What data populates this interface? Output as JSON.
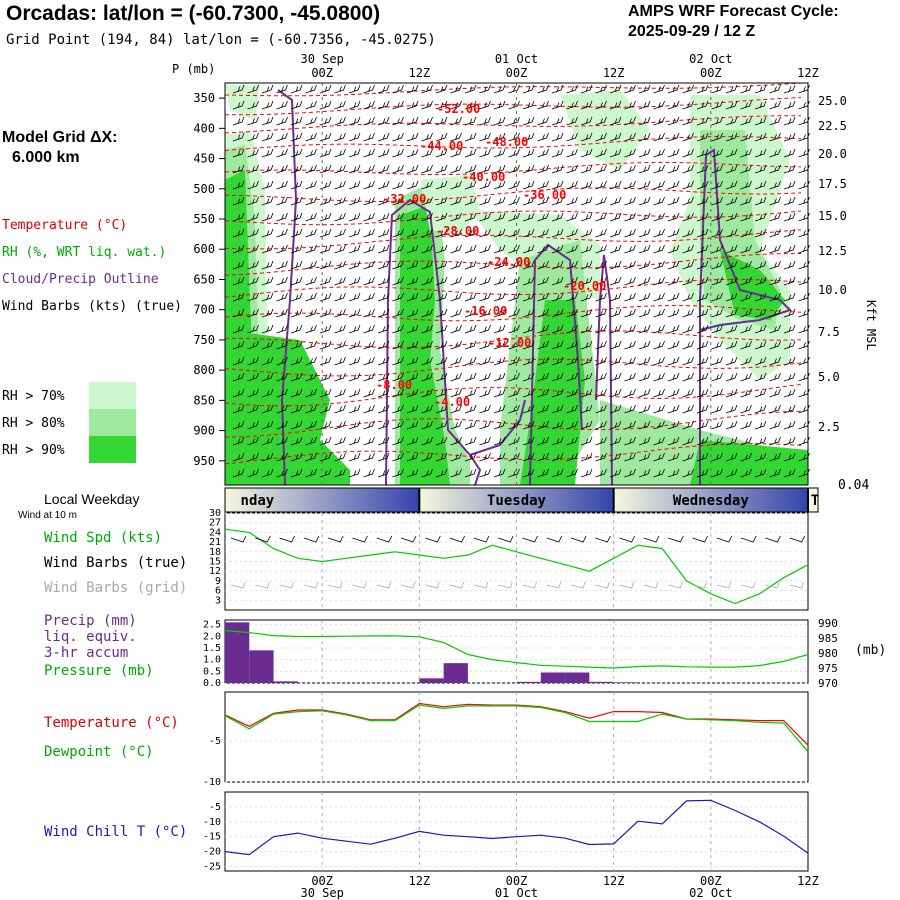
{
  "header": {
    "title": "Orcadas:  lat/lon = (-60.7300, -45.0800)",
    "grid_point": "Grid Point (194, 84) lat/lon = (-60.7356, -45.0275)",
    "cycle_line1": "AMPS WRF Forecast Cycle:",
    "cycle_line2": "2025-09-29 / 12  Z",
    "p_unit": "P (mb)",
    "model_grid_label": "Model Grid ΔX:",
    "model_grid_value": "6.000 km",
    "kft_label": "Kft MSL",
    "mb_label": "(mb)",
    "bottom_corner": "0.04"
  },
  "colors": {
    "rh70": "#cdf7cd",
    "rh80": "#9fe89f",
    "rh90": "#33d633",
    "temperature": "#ff0000",
    "dewpoint": "#00cc00",
    "cloud_outline": "#6a2c91",
    "precip": "#6a2c91",
    "wind_chill": "#1a1ab3",
    "wind_speed": "#00cc00"
  },
  "legend": {
    "temperature": "Temperature (°C)",
    "rh": "RH (%, WRT liq. wat.)",
    "cloud": "Cloud/Precip Outline",
    "wind_barbs": "Wind Barbs (kts) (true)",
    "rh70": "RH > 70%",
    "rh80": "RH > 80%",
    "rh90": "RH > 90%"
  },
  "panels": {
    "weekday_title": "Local Weekday",
    "wind_at": "Wind at 10 m",
    "wind_spd": "Wind Spd (kts)",
    "barbs_true": "Wind Barbs (true)",
    "barbs_grid": "Wind Barbs (grid)",
    "precip1": "Precip (mm)",
    "precip2": "liq. equiv.",
    "precip3": "3-hr accum",
    "pressure": "Pressure (mb)",
    "temperature": "Temperature (°C)",
    "dewpoint": "Dewpoint (°C)",
    "wind_chill": "Wind Chill T (°C)"
  },
  "chart_data": [
    {
      "type": "heatmap",
      "name": "vertical profile",
      "x_top_date_labels": [
        "30 Sep",
        "01 Oct",
        "02 Oct"
      ],
      "x_tick_labels": [
        "00Z",
        "12Z",
        "00Z",
        "12Z",
        "00Z",
        "12Z"
      ],
      "y_pressure_ticks": [
        350,
        400,
        450,
        500,
        550,
        600,
        650,
        700,
        750,
        800,
        850,
        900,
        950
      ],
      "y_height_kft_ticks": [
        "25.0",
        "22.5",
        "20.0",
        "17.5",
        "15.0",
        "12.5",
        "10.0",
        "7.5",
        "5.0",
        "2.5"
      ],
      "temperature_contour_labels": [
        "-52.00",
        "-48.00",
        "-44.00",
        "-40.00",
        "-36.00",
        "-32.00",
        "-28.00",
        "-24.00",
        "-20.00",
        "-16.00",
        "-12.00",
        "-8.00",
        "-4.00"
      ],
      "weekdays": [
        "nday",
        "Tuesday",
        "Wednesday",
        "T"
      ]
    },
    {
      "type": "line",
      "name": "wind speed",
      "series_label": "Wind Spd (kts)",
      "y_ticks": [
        3,
        6,
        9,
        12,
        15,
        18,
        21,
        24,
        27,
        30
      ],
      "x_hours": [
        -12,
        -9,
        -6,
        -3,
        0,
        3,
        6,
        9,
        12,
        15,
        18,
        21,
        24,
        27,
        30,
        33,
        36,
        39,
        42,
        45,
        48,
        51,
        54,
        57,
        60
      ],
      "values": [
        25,
        24,
        19,
        16,
        15,
        16,
        17,
        18,
        17,
        16,
        17,
        20,
        18,
        16,
        14,
        12,
        16,
        20,
        19,
        9,
        5,
        2,
        5,
        10,
        14
      ]
    },
    {
      "type": "bar",
      "name": "precip and pressure",
      "precip_y_ticks": [
        "0.0",
        "0.5",
        "1.0",
        "1.5",
        "2.0",
        "2.5"
      ],
      "pressure_y_ticks": [
        970,
        975,
        980,
        985,
        990
      ],
      "precip_bins_start_hour": [
        -12,
        -9,
        -6,
        -3,
        0,
        3,
        6,
        9,
        12,
        15,
        18,
        21,
        24,
        27,
        30,
        33,
        36,
        39,
        42
      ],
      "precip_values": [
        2.6,
        1.4,
        0.07,
        0,
        0,
        0,
        0,
        0,
        0.2,
        0.85,
        0,
        0,
        0.05,
        0.45,
        0.45,
        0.05,
        0.03,
        0,
        0
      ],
      "pressure_x_hours": [
        -12,
        -9,
        -6,
        -3,
        0,
        3,
        6,
        9,
        12,
        15,
        18,
        21,
        24,
        27,
        30,
        33,
        36,
        39,
        42,
        45,
        48,
        51,
        54,
        57,
        60
      ],
      "pressure_values": [
        987.5,
        986.8,
        985.8,
        985.5,
        985.5,
        985.6,
        985.7,
        985.7,
        985.4,
        983.5,
        979.5,
        977.8,
        976.8,
        975.9,
        975.6,
        975.3,
        975.0,
        975.5,
        975.7,
        975.4,
        975.3,
        975.3,
        975.8,
        977.2,
        979.5
      ]
    },
    {
      "type": "line",
      "name": "temperature and dewpoint",
      "y_ticks": [
        -5,
        -10
      ],
      "x_hours": [
        -12,
        -9,
        -6,
        -3,
        0,
        3,
        6,
        9,
        12,
        15,
        18,
        21,
        24,
        27,
        30,
        33,
        36,
        39,
        42,
        45,
        48,
        51,
        54,
        57,
        60
      ],
      "series": [
        {
          "name": "Temperature (°C)",
          "values": [
            -1.8,
            -3.2,
            -1.6,
            -1.2,
            -1.2,
            -1.7,
            -2.4,
            -2.4,
            -0.4,
            -0.8,
            -0.5,
            -0.6,
            -0.6,
            -0.8,
            -1.4,
            -2.2,
            -1.4,
            -1.4,
            -1.5,
            -2.3,
            -2.3,
            -2.4,
            -2.5,
            -2.5,
            -5.5
          ]
        },
        {
          "name": "Dewpoint (°C)",
          "values": [
            -1.9,
            -3.5,
            -1.7,
            -1.4,
            -1.3,
            -1.8,
            -2.5,
            -2.5,
            -0.6,
            -1.0,
            -0.7,
            -0.7,
            -0.7,
            -0.9,
            -1.5,
            -2.6,
            -2.6,
            -2.6,
            -1.7,
            -2.3,
            -2.4,
            -2.5,
            -2.7,
            -2.8,
            -6.3
          ]
        }
      ]
    },
    {
      "type": "line",
      "name": "wind chill",
      "series_label": "Wind Chill T (°C)",
      "y_ticks": [
        -5,
        -10,
        -15,
        -20,
        -25
      ],
      "x_hours": [
        -12,
        -9,
        -6,
        -3,
        0,
        3,
        6,
        9,
        12,
        15,
        18,
        21,
        24,
        27,
        30,
        33,
        36,
        39,
        42,
        45,
        48,
        51,
        54,
        57,
        60
      ],
      "values": [
        -20.0,
        -21.0,
        -15.0,
        -13.8,
        -15.5,
        -16.5,
        -17.5,
        -15.5,
        -13.2,
        -14.5,
        -15.0,
        -15.6,
        -15.0,
        -14.5,
        -15.5,
        -17.6,
        -17.4,
        -9.8,
        -10.7,
        -3.0,
        -2.8,
        -6.2,
        -10.0,
        -14.8,
        -20.5
      ]
    }
  ]
}
